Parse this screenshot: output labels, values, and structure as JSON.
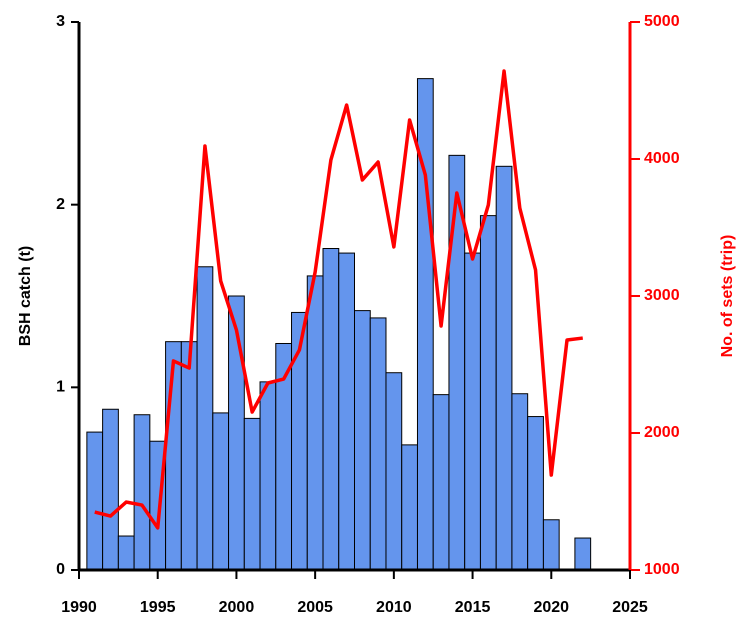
{
  "chart_data": {
    "type": "bar",
    "ylabel": "BSH catch (t)",
    "y2label": "No. of sets (trip)",
    "x": [
      1991,
      1992,
      1993,
      1994,
      1995,
      1996,
      1997,
      1998,
      1999,
      2000,
      2001,
      2002,
      2003,
      2004,
      2005,
      2006,
      2007,
      2008,
      2009,
      2010,
      2011,
      2012,
      2013,
      2014,
      2015,
      2016,
      2017,
      2018,
      2019,
      2020,
      2021,
      2022
    ],
    "series": [
      {
        "type": "bar",
        "color": "#6495ed",
        "values": [
          0.755,
          0.88,
          0.186,
          0.85,
          0.705,
          1.25,
          1.25,
          1.66,
          0.86,
          1.5,
          0.83,
          1.03,
          1.24,
          1.41,
          1.61,
          1.76,
          1.735,
          1.42,
          1.38,
          1.08,
          0.685,
          2.69,
          0.96,
          2.27,
          1.735,
          1.94,
          2.21,
          0.965,
          0.84,
          0.275,
          null,
          0.175
        ]
      },
      {
        "type": "line",
        "axis": "y2",
        "color": "#ff0000",
        "values": [
          1423,
          1394,
          1496,
          1474,
          1307,
          2526,
          2474,
          4095,
          3110,
          2752,
          2153,
          2365,
          2394,
          2606,
          3175,
          3993,
          4394,
          3847,
          3978,
          3358,
          4285,
          3883,
          2781,
          3752,
          3270,
          3664,
          4642,
          3642,
          3190,
          1693,
          2679,
          2693
        ]
      }
    ],
    "xlim": [
      1990,
      2025
    ],
    "xticks": [
      1990,
      1995,
      2000,
      2005,
      2010,
      2015,
      2020,
      2025
    ],
    "ylim": [
      0,
      3
    ],
    "yticks": [
      0,
      1,
      2,
      3
    ],
    "y2lim": [
      1000,
      5000
    ],
    "y2ticks": [
      1000,
      2000,
      3000,
      4000,
      5000
    ],
    "y2color": "#ff0000"
  }
}
